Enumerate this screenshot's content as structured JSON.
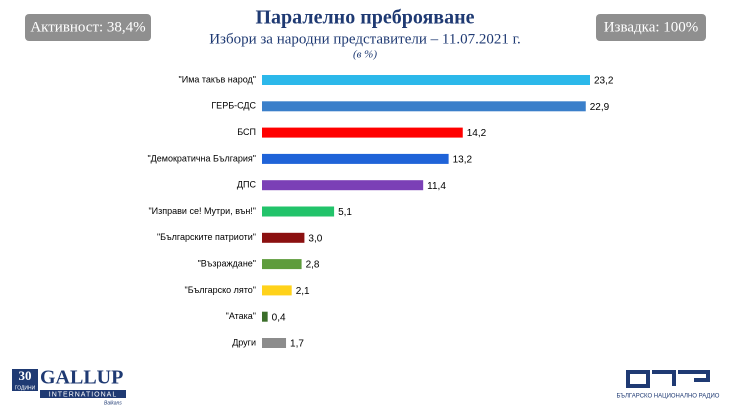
{
  "chart_data": {
    "type": "bar",
    "orientation": "horizontal",
    "title": "Паралелно преброяване",
    "subtitle": "Избори за народни представители – 11.07.2021 г.",
    "unit_note": "(в %)",
    "categories": [
      "\"Има такъв народ\"",
      "ГЕРБ-СДС",
      "БСП",
      "\"Демократична България\"",
      "ДПС",
      "\"Изправи се! Мутри, вън!\"",
      "\"Българските патриоти\"",
      "\"Възраждане\"",
      "\"Българско лято\"",
      "\"Атака\"",
      "Други"
    ],
    "values": [
      23.2,
      22.9,
      14.2,
      13.2,
      11.4,
      5.1,
      3.0,
      2.8,
      2.1,
      0.4,
      1.7
    ],
    "value_labels": [
      "23,2",
      "22,9",
      "14,2",
      "13,2",
      "11,4",
      "5,1",
      "3,0",
      "2,8",
      "2,1",
      "0,4",
      "1,7"
    ],
    "colors": [
      "#2cb8ea",
      "#3a7fca",
      "#ff0000",
      "#1f63d8",
      "#7b40b6",
      "#22c36a",
      "#8b1010",
      "#5e9c3c",
      "#ffd21a",
      "#3b6e2a",
      "#8c8c8c"
    ]
  },
  "badges": {
    "turnout": "Активност: 38,4%",
    "sample": "Извадка: 100%"
  },
  "logos": {
    "gallup_years": "30",
    "gallup_years_word": "ГОДИНИ",
    "gallup_name": "GALLUP",
    "gallup_sub": "INTERNATIONAL",
    "gallup_region": "Balkans",
    "bnr_name": "БЪЛГАРСКО НАЦИОНАЛНО РАДИО"
  }
}
